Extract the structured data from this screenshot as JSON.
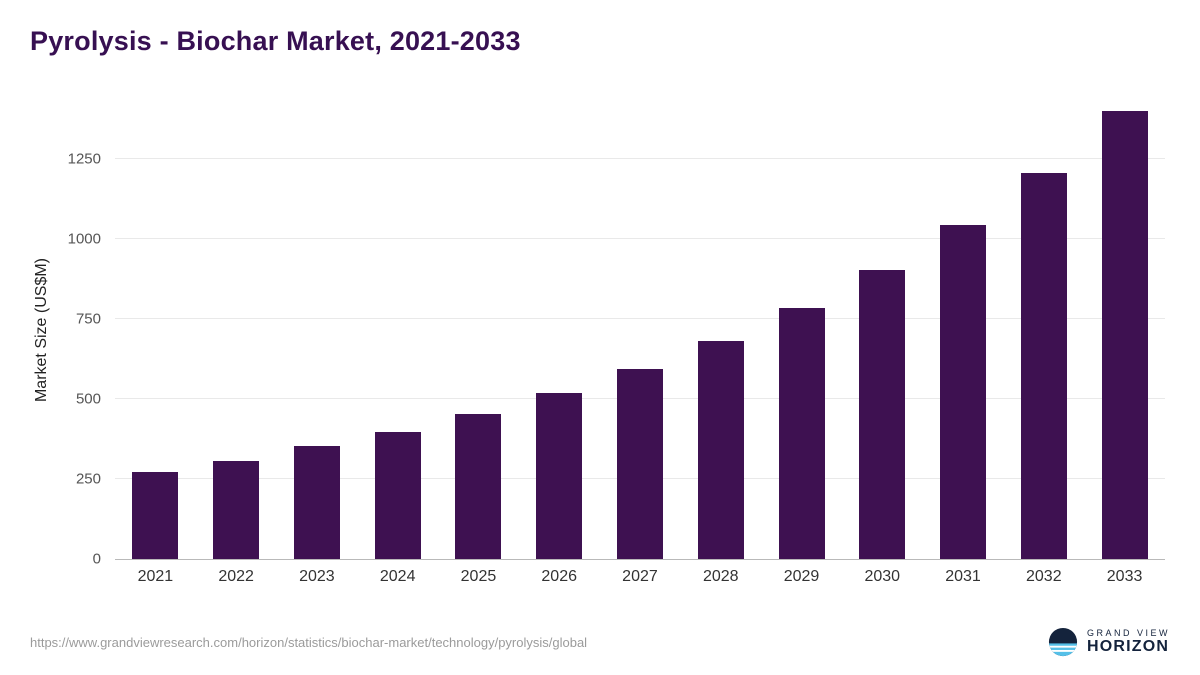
{
  "title": "Pyrolysis - Biochar Market, 2021-2033",
  "chart_data": {
    "type": "bar",
    "title": "Pyrolysis - Biochar Market, 2021-2033",
    "categories": [
      "2021",
      "2022",
      "2023",
      "2024",
      "2025",
      "2026",
      "2027",
      "2028",
      "2029",
      "2030",
      "2031",
      "2032",
      "2033"
    ],
    "values": [
      272,
      308,
      352,
      398,
      455,
      520,
      595,
      682,
      785,
      905,
      1045,
      1207,
      1400
    ],
    "xlabel": "",
    "ylabel": "Market Size (US$M)",
    "yticks": [
      0,
      250,
      500,
      750,
      1000,
      1250
    ],
    "ylim": [
      0,
      1420
    ],
    "grid": true,
    "legend_position": "none",
    "bar_color": "#3e1151"
  },
  "colors": {
    "title": "#371052",
    "bar": "#3e1151",
    "gridline": "#e9e9e9",
    "axis": "#b9b9b9",
    "logo_navy": "#14233c",
    "logo_blue": "#55c0e8"
  },
  "footer": {
    "source_url": "https://www.grandviewresearch.com/horizon/statistics/biochar-market/technology/pyrolysis/global",
    "logo_line1": "GRAND VIEW",
    "logo_line2": "HORIZON"
  }
}
